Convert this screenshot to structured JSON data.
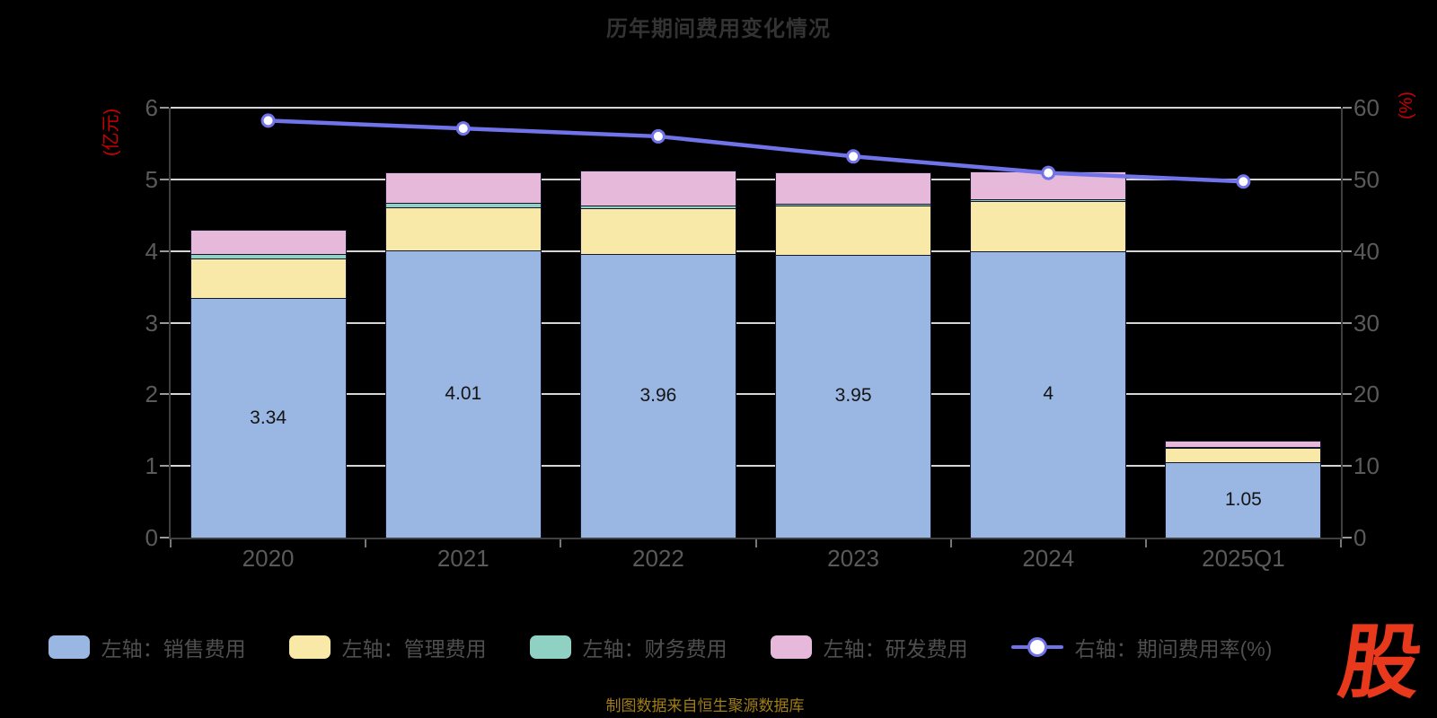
{
  "title": "历年期间费用变化情况",
  "footer": "制图数据来自恒生聚源数据库",
  "logo": "股",
  "left_axis": {
    "name": "(亿元)",
    "ticks": [
      0,
      1,
      2,
      3,
      4,
      5,
      6
    ],
    "max": 6
  },
  "right_axis": {
    "name": "(%)",
    "ticks": [
      0,
      10,
      20,
      30,
      40,
      50,
      60
    ],
    "max": 60
  },
  "colors": {
    "background": "#000000",
    "title_text": "#333333",
    "axis_text": "#5a5a5a",
    "axis_unit_text": "#cc0000",
    "gridline": "#d6d6d6",
    "footer_text": "#a07d18",
    "logo_red": "#e8391d"
  },
  "chart_data": {
    "type": "bar",
    "subtype": "stacked-bars-with-right-axis-line",
    "categories": [
      "2020",
      "2021",
      "2022",
      "2023",
      "2024",
      "2025Q1"
    ],
    "left_ylim": [
      0,
      6
    ],
    "right_ylim": [
      0,
      60
    ],
    "grid": true,
    "legend_position": "bottom",
    "series": [
      {
        "name": "左轴：销售费用",
        "kind": "bar",
        "axis": "left",
        "color": "#9ab6e2",
        "values": [
          3.34,
          4.01,
          3.96,
          3.95,
          4,
          1.05
        ],
        "labels": [
          "3.34",
          "4.01",
          "3.96",
          "3.95",
          "4",
          "1.05"
        ]
      },
      {
        "name": "左轴：管理费用",
        "kind": "bar",
        "axis": "left",
        "color": "#f9e9a8",
        "values": [
          0.55,
          0.6,
          0.64,
          0.68,
          0.7,
          0.2
        ]
      },
      {
        "name": "左轴：财务费用",
        "kind": "bar",
        "axis": "left",
        "color": "#8fd2c4",
        "values": [
          0.07,
          0.06,
          0.04,
          0.03,
          0.02,
          0.01
        ]
      },
      {
        "name": "左轴：研发费用",
        "kind": "bar",
        "axis": "left",
        "color": "#e6b8d9",
        "values": [
          0.33,
          0.41,
          0.47,
          0.43,
          0.38,
          0.08
        ]
      },
      {
        "name": "右轴：期间费用率(%)",
        "kind": "line",
        "axis": "right",
        "color": "#7173e8",
        "marker": "circle-white",
        "values": [
          58.2,
          57.1,
          56.0,
          53.2,
          50.9,
          49.7
        ]
      }
    ]
  }
}
